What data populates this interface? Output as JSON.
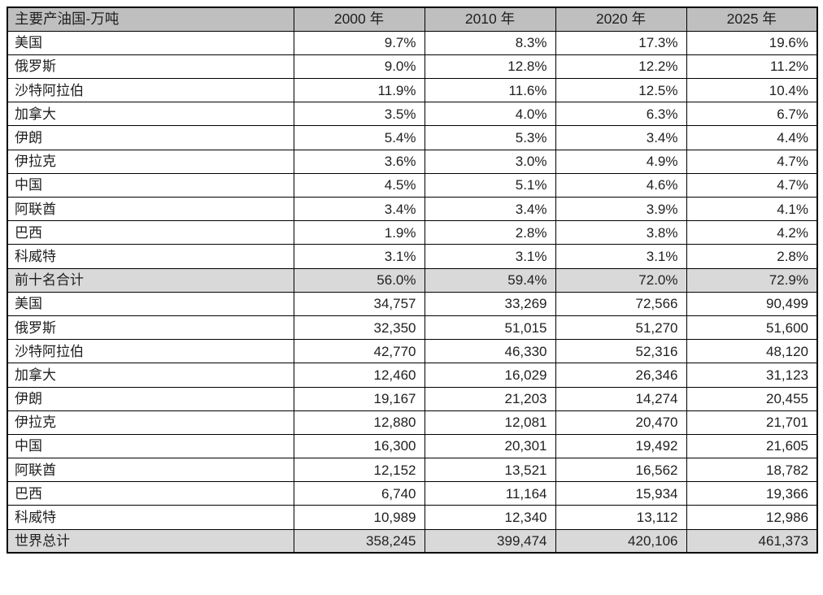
{
  "colors": {
    "header_bg": "#bfbfbf",
    "summary_bg": "#d9d9d9",
    "border": "#000000",
    "text": "#1f1f1f",
    "page_bg": "#ffffff"
  },
  "chart_data": {
    "type": "table",
    "title": "主要产油国-万吨",
    "columns": [
      "主要产油国-万吨",
      "2000 年",
      "2010 年",
      "2020 年",
      "2025 年"
    ],
    "rows": [
      {
        "label": "美国",
        "kind": "data",
        "values": [
          "9.7%",
          "8.3%",
          "17.3%",
          "19.6%"
        ]
      },
      {
        "label": "俄罗斯",
        "kind": "data",
        "values": [
          "9.0%",
          "12.8%",
          "12.2%",
          "11.2%"
        ]
      },
      {
        "label": "沙特阿拉伯",
        "kind": "data",
        "values": [
          "11.9%",
          "11.6%",
          "12.5%",
          "10.4%"
        ]
      },
      {
        "label": "加拿大",
        "kind": "data",
        "values": [
          "3.5%",
          "4.0%",
          "6.3%",
          "6.7%"
        ]
      },
      {
        "label": "伊朗",
        "kind": "data",
        "values": [
          "5.4%",
          "5.3%",
          "3.4%",
          "4.4%"
        ]
      },
      {
        "label": "伊拉克",
        "kind": "data",
        "values": [
          "3.6%",
          "3.0%",
          "4.9%",
          "4.7%"
        ]
      },
      {
        "label": "中国",
        "kind": "data",
        "values": [
          "4.5%",
          "5.1%",
          "4.6%",
          "4.7%"
        ]
      },
      {
        "label": "阿联酋",
        "kind": "data",
        "values": [
          "3.4%",
          "3.4%",
          "3.9%",
          "4.1%"
        ]
      },
      {
        "label": "巴西",
        "kind": "data",
        "values": [
          "1.9%",
          "2.8%",
          "3.8%",
          "4.2%"
        ]
      },
      {
        "label": "科威特",
        "kind": "data",
        "values": [
          "3.1%",
          "3.1%",
          "3.1%",
          "2.8%"
        ]
      },
      {
        "label": "前十名合计",
        "kind": "summary",
        "values": [
          "56.0%",
          "59.4%",
          "72.0%",
          "72.9%"
        ]
      },
      {
        "label": "美国",
        "kind": "data",
        "values": [
          "34,757",
          "33,269",
          "72,566",
          "90,499"
        ]
      },
      {
        "label": "俄罗斯",
        "kind": "data",
        "values": [
          "32,350",
          "51,015",
          "51,270",
          "51,600"
        ]
      },
      {
        "label": "沙特阿拉伯",
        "kind": "data",
        "values": [
          "42,770",
          "46,330",
          "52,316",
          "48,120"
        ]
      },
      {
        "label": "加拿大",
        "kind": "data",
        "values": [
          "12,460",
          "16,029",
          "26,346",
          "31,123"
        ]
      },
      {
        "label": "伊朗",
        "kind": "data",
        "values": [
          "19,167",
          "21,203",
          "14,274",
          "20,455"
        ]
      },
      {
        "label": "伊拉克",
        "kind": "data",
        "values": [
          "12,880",
          "12,081",
          "20,470",
          "21,701"
        ]
      },
      {
        "label": "中国",
        "kind": "data",
        "values": [
          "16,300",
          "20,301",
          "19,492",
          "21,605"
        ]
      },
      {
        "label": "阿联酋",
        "kind": "data",
        "values": [
          "12,152",
          "13,521",
          "16,562",
          "18,782"
        ]
      },
      {
        "label": "巴西",
        "kind": "data",
        "values": [
          "6,740",
          "11,164",
          "15,934",
          "19,366"
        ]
      },
      {
        "label": "科威特",
        "kind": "data",
        "values": [
          "10,989",
          "12,340",
          "13,112",
          "12,986"
        ]
      },
      {
        "label": "世界总计",
        "kind": "summary",
        "values": [
          "358,245",
          "399,474",
          "420,106",
          "461,373"
        ]
      }
    ]
  }
}
